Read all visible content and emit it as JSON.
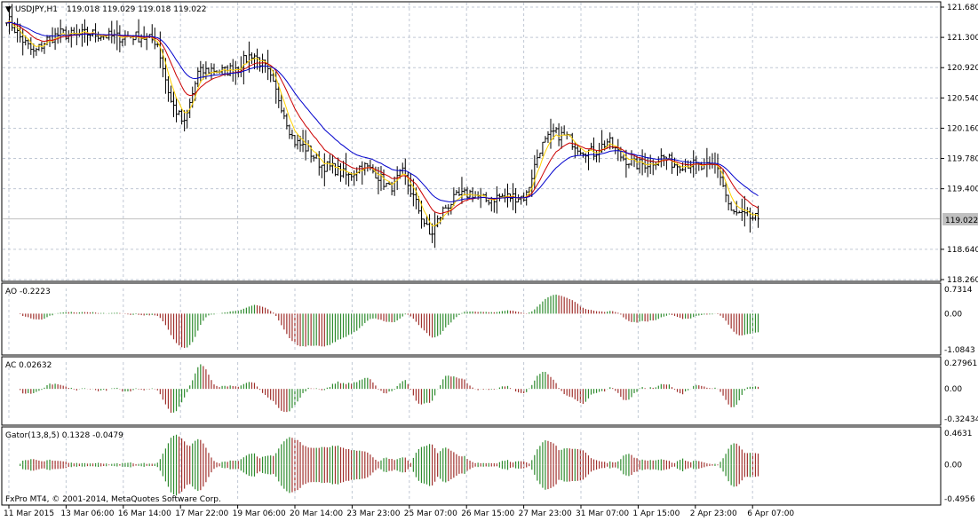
{
  "colors": {
    "background": "#ffffff",
    "grid": "#c0c8d4",
    "bar": "#000000",
    "ma_fast": "#ffd200",
    "ma_mid": "#cc0000",
    "ma_slow": "#0000cc",
    "up": "#2e8b2e",
    "down": "#a0302c",
    "current_price_box": "#c0c0c0"
  },
  "chart_data": [
    {
      "type": "ohlc",
      "symbol_label": "USDJPY,H1",
      "ohlc_label": "119.018 119.029 119.018 119.022",
      "current_price": "119.022",
      "y_ticks": [
        "121.680",
        "121.300",
        "120.920",
        "120.540",
        "120.160",
        "119.780",
        "119.400",
        "118.640",
        "118.260"
      ],
      "ylim": [
        118.26,
        121.68
      ],
      "grid": true,
      "series_close": [
        121.55,
        121.3,
        121.1,
        121.28,
        121.35,
        121.32,
        121.35,
        121.33,
        121.3,
        121.32,
        121.3,
        121.25,
        120.5,
        120.2,
        120.85,
        120.9,
        120.87,
        120.95,
        121.1,
        120.9,
        120.5,
        120.0,
        119.9,
        119.7,
        119.65,
        119.55,
        119.7,
        119.6,
        119.4,
        119.6,
        119.2,
        118.8,
        119.15,
        119.3,
        119.35,
        119.25,
        119.3,
        119.3,
        119.3,
        119.9,
        120.1,
        120.05,
        119.9,
        119.85,
        120.0,
        119.8,
        119.7,
        119.72,
        119.8,
        119.7,
        119.72,
        119.65,
        119.7,
        119.1,
        119.05,
        119.02
      ]
    },
    {
      "type": "histogram",
      "indicator_label": "AO -0.2223",
      "y_ticks": [
        "0.7314",
        "0.00",
        "-1.0843"
      ],
      "ylim": [
        -1.0843,
        0.7314
      ]
    },
    {
      "type": "histogram",
      "indicator_label": "AC 0.02632",
      "y_ticks": [
        "0.27961",
        "0.00",
        "-0.32434"
      ],
      "ylim": [
        -0.32434,
        0.27961
      ]
    },
    {
      "type": "histogram",
      "indicator_label": "Gator(13,8,5) 0.1328 -0.0479",
      "y_ticks": [
        "0.4631",
        "0.00",
        "-0.4956"
      ],
      "ylim": [
        -0.4956,
        0.4631
      ]
    }
  ],
  "x_ticks": [
    "11 Mar 2015",
    "13 Mar 06:00",
    "16 Mar 14:00",
    "17 Mar 22:00",
    "19 Mar 06:00",
    "20 Mar 14:00",
    "23 Mar 23:00",
    "25 Mar 07:00",
    "26 Mar 15:00",
    "27 Mar 23:00",
    "31 Mar 07:00",
    "1 Apr 15:00",
    "2 Apr 23:00",
    "6 Apr 07:00"
  ],
  "copyright": "FxPro MT4, © 2001-2014, MetaQuotes Software Corp."
}
